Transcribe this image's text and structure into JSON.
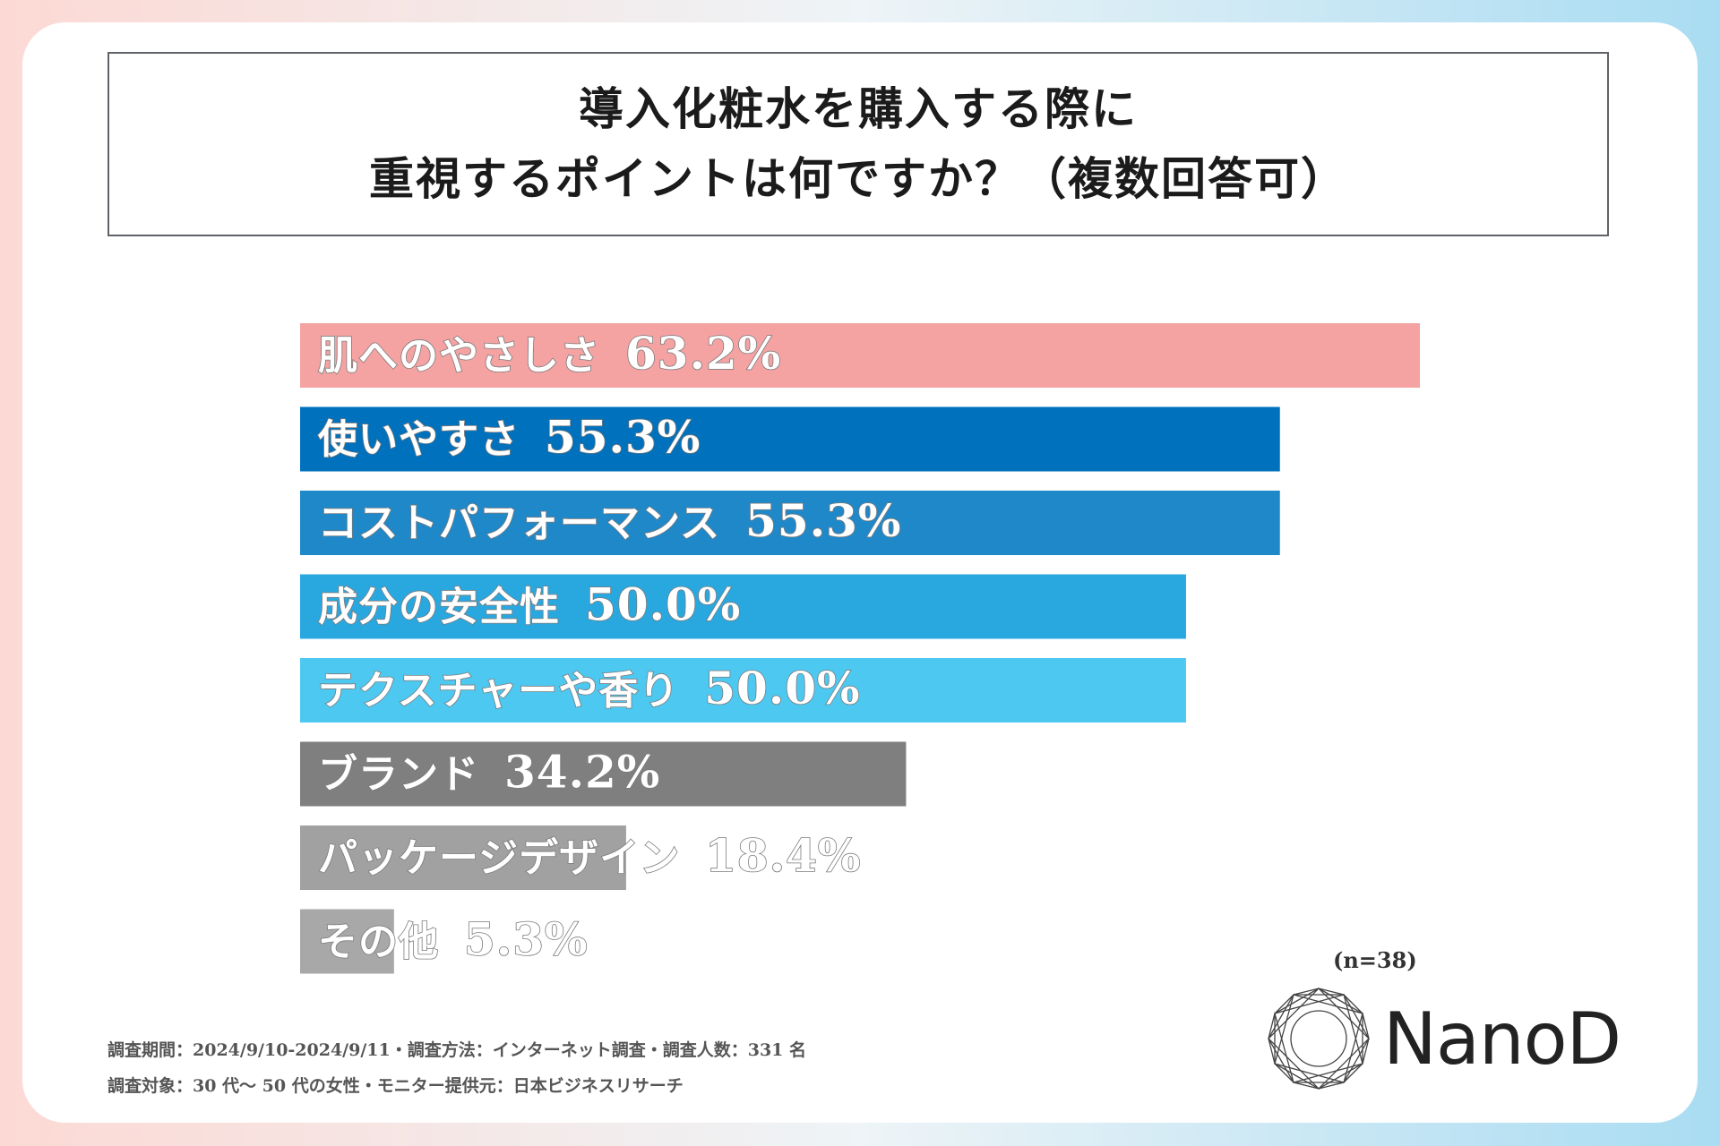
{
  "chart_data": {
    "type": "bar",
    "orientation": "horizontal",
    "title": [
      "導入化粧水を購入する際に",
      "重視するポイントは何ですか？（複数回答可）"
    ],
    "categories": [
      "肌へのやさしさ",
      "使いやすさ",
      "コストパフォーマンス",
      "成分の安全性",
      "テクスチャーや香り",
      "ブランド",
      "パッケージデザイン",
      "その他"
    ],
    "values": [
      63.2,
      55.3,
      55.3,
      50.0,
      50.0,
      34.2,
      18.4,
      5.3
    ],
    "value_labels": [
      "63.2%",
      "55.3%",
      "55.3%",
      "50.0%",
      "50.0%",
      "34.2%",
      "18.4%",
      "5.3%"
    ],
    "colors": [
      "#f5a2a2",
      "#0071bd",
      "#1f88c9",
      "#29a8e0",
      "#4dc8f0",
      "#7f7f7f",
      "#a1a1a1",
      "#a8a8a8"
    ],
    "xlim": [
      0,
      63.2
    ],
    "unit": "%",
    "sample_size": "(n=38)"
  },
  "footer": {
    "line1": "調査期間：2024/9/10-2024/9/11・調査方法：インターネット調査・調査人数：331 名",
    "line2": "調査対象：30 代〜 50 代の女性・モニター提供元：日本ビジネスリサーチ"
  },
  "brand": {
    "name": "NanoD",
    "logo_icon": "geometric-polygon-logo-icon"
  }
}
